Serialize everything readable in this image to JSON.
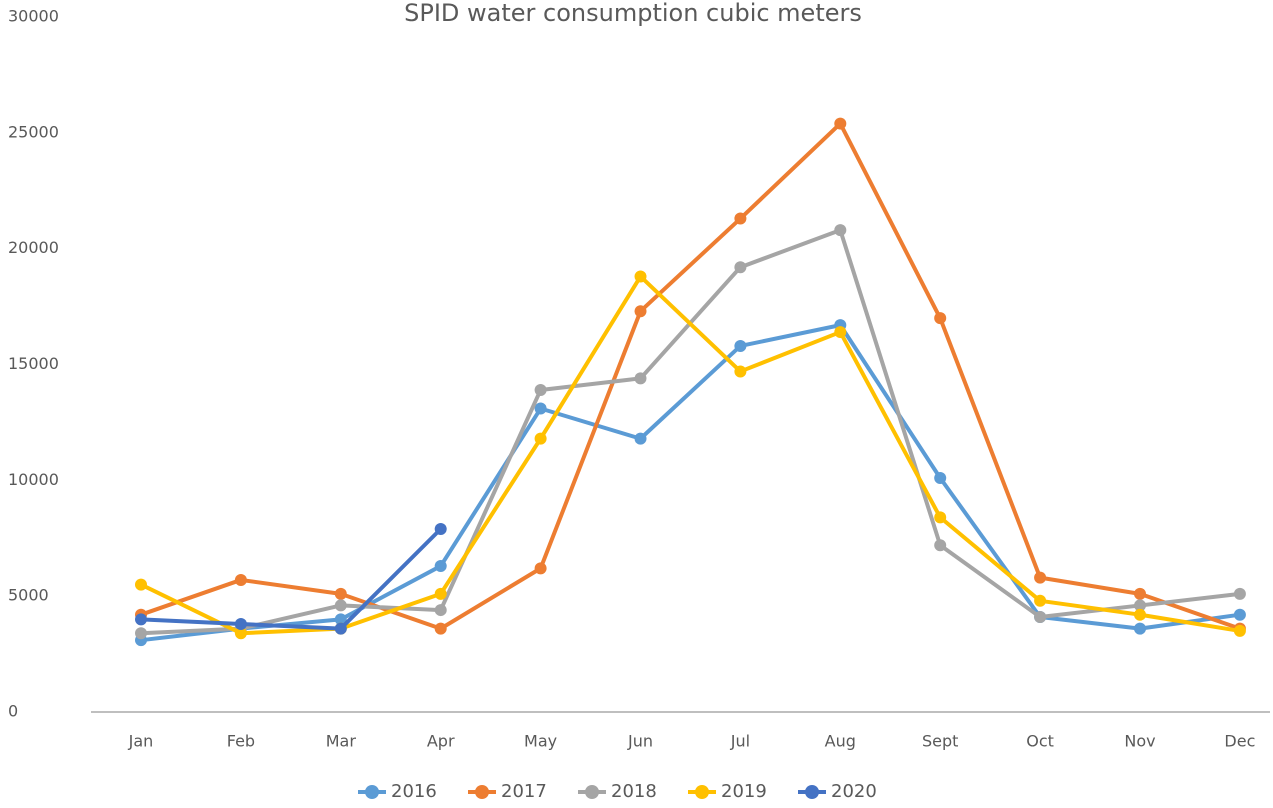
{
  "chart_data": {
    "type": "line",
    "title": "SPID water consumption cubic meters",
    "categories": [
      "Jan",
      "Feb",
      "Mar",
      "Apr",
      "May",
      "Jun",
      "Jul",
      "Aug",
      "Sept",
      "Oct",
      "Nov",
      "Dec"
    ],
    "series": [
      {
        "name": "2016",
        "color": "#5b9bd5",
        "values": [
          3100,
          3600,
          4000,
          6300,
          13100,
          11800,
          15800,
          16700,
          10100,
          4100,
          3600,
          4200
        ]
      },
      {
        "name": "2017",
        "color": "#ed7d31",
        "values": [
          4200,
          5700,
          5100,
          3600,
          6200,
          17300,
          21300,
          25400,
          17000,
          5800,
          5100,
          3600
        ]
      },
      {
        "name": "2018",
        "color": "#a5a5a5",
        "values": [
          3400,
          3600,
          4600,
          4400,
          13900,
          14400,
          19200,
          20800,
          7200,
          4100,
          4600,
          5100
        ]
      },
      {
        "name": "2019",
        "color": "#ffc000",
        "values": [
          5500,
          3400,
          3600,
          5100,
          11800,
          18800,
          14700,
          16400,
          8400,
          4800,
          4200,
          3500
        ]
      },
      {
        "name": "2020",
        "color": "#4472c4",
        "values": [
          4000,
          3800,
          3600,
          7900,
          null,
          null,
          null,
          null,
          null,
          null,
          null,
          null
        ]
      }
    ],
    "ylim": [
      0,
      30000
    ],
    "yticks": [
      0,
      5000,
      10000,
      15000,
      20000,
      25000,
      30000
    ],
    "grid": false,
    "legend": "bottom"
  }
}
